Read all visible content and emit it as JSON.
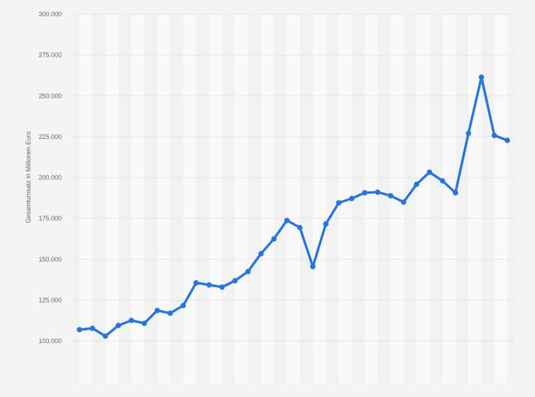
{
  "chart_data": {
    "type": "line",
    "title": "",
    "xlabel": "",
    "ylabel": "Gesamtumsatz in Millionen Euro",
    "ylim": [
      100000,
      300000
    ],
    "yticks": [
      100000,
      125000,
      150000,
      175000,
      200000,
      225000,
      250000,
      275000,
      300000
    ],
    "ytick_labels": [
      "100.000",
      "125.000",
      "150.000",
      "175.000",
      "200.000",
      "225.000",
      "250.000",
      "275.000",
      "300.000"
    ],
    "grid": true,
    "line_color": "#2876dd",
    "series": [
      {
        "values": [
          106900,
          107800,
          103000,
          109500,
          112600,
          110800,
          118700,
          117000,
          121700,
          135600,
          134300,
          133000,
          136900,
          142500,
          153400,
          162500,
          173800,
          169400,
          145500,
          171600,
          184600,
          187200,
          190700,
          191100,
          188900,
          185000,
          195900,
          203300,
          198000,
          190700,
          227100,
          261400,
          225800,
          222800
        ]
      }
    ]
  }
}
